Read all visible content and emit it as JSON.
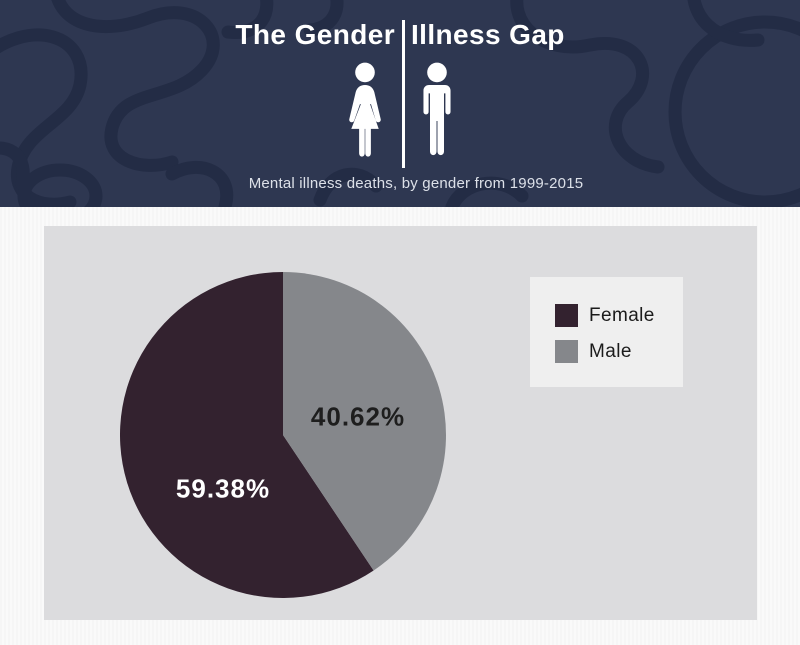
{
  "header": {
    "title_left": "The Gender",
    "title_right": "Illness Gap",
    "subtitle": "Mental illness deaths, by gender from 1999-2015"
  },
  "colors": {
    "header_background": "#2e3751",
    "header_pattern": "#232c45",
    "panel_background": "#dcdcde",
    "page_background": "#f8f8f8",
    "legend_background": "#efefef",
    "female": "#33222f",
    "male": "#85878b",
    "title_text": "#ffffff"
  },
  "chart_data": {
    "type": "pie",
    "title": "Mental illness deaths, by gender from 1999-2015",
    "categories": [
      "Female",
      "Male"
    ],
    "values": [
      59.38,
      40.62
    ],
    "unit": "percent",
    "slices": [
      {
        "label": "Female",
        "value": 59.38,
        "display": "59.38%",
        "color": "#33222f",
        "label_text_color": "#ffffff"
      },
      {
        "label": "Male",
        "value": 40.62,
        "display": "40.62%",
        "color": "#85878b",
        "label_text_color": "#1e1e1e"
      }
    ],
    "start_angle_deg": 0,
    "direction": "counterclockwise",
    "legend_position": "right",
    "legend_entries": [
      "Female",
      "Male"
    ]
  },
  "legend": {
    "items": [
      {
        "label": "Female",
        "color": "#33222f"
      },
      {
        "label": "Male",
        "color": "#85878b"
      }
    ]
  }
}
